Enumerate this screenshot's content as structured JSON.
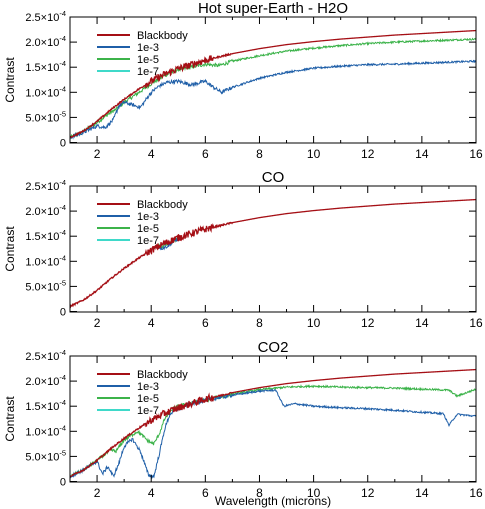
{
  "figure": {
    "xlabel": "Wavelength (microns)"
  },
  "legend_entries": [
    {
      "name": "Blackbody",
      "color": "#a50f15"
    },
    {
      "name": "1e-3",
      "color": "#1f5fa8"
    },
    {
      "name": "1e-5",
      "color": "#3cb34a"
    },
    {
      "name": "1e-7",
      "color": "#3fd9c9"
    }
  ],
  "chart_data": [
    {
      "type": "line",
      "title": "Hot super-Earth - H2O",
      "xlabel": "",
      "ylabel": "Contrast",
      "xlim": [
        1,
        16
      ],
      "ylim": [
        -1e-06,
        0.00025
      ],
      "x_ticks": [
        2,
        4,
        6,
        8,
        10,
        12,
        14,
        16
      ],
      "x_tick_labels": [
        "2",
        "4",
        "6",
        "8",
        "10",
        "12",
        "14",
        "16"
      ],
      "y_ticks": [
        0,
        5e-05,
        0.0001,
        0.00015,
        0.0002,
        0.00025
      ],
      "y_tick_labels": [
        {
          "mant": "0",
          "exp": ""
        },
        {
          "mant": "5.0×10",
          "exp": "-5"
        },
        {
          "mant": "1.0×10",
          "exp": "-4"
        },
        {
          "mant": "1.5×10",
          "exp": "-4"
        },
        {
          "mant": "2.0×10",
          "exp": "-4"
        },
        {
          "mant": "2.5×10",
          "exp": "-4"
        }
      ],
      "legend": "top-left",
      "series": [
        {
          "name": "Blackbody",
          "color": "#a50f15",
          "x": [
            1.0,
            1.5,
            2.0,
            2.5,
            3.0,
            3.5,
            4.0,
            4.5,
            5.0,
            6.0,
            7.0,
            8.0,
            9.0,
            10.0,
            11.0,
            12.0,
            13.0,
            14.0,
            15.0,
            16.0
          ],
          "y": [
            1e-05,
            2.3e-05,
            4.2e-05,
            6.5e-05,
            8.6e-05,
            0.000105,
            0.000122,
            0.000136,
            0.000147,
            0.000164,
            0.000177,
            0.000187,
            0.000195,
            0.000201,
            0.000206,
            0.00021,
            0.000214,
            0.000217,
            0.00022,
            0.000223
          ]
        },
        {
          "name": "1e-3",
          "color": "#1f5fa8",
          "x": [
            1.0,
            1.5,
            2.0,
            2.3,
            2.6,
            2.8,
            3.0,
            3.3,
            3.6,
            4.0,
            4.3,
            4.6,
            5.0,
            5.5,
            6.0,
            6.3,
            6.6,
            7.0,
            8.0,
            9.0,
            10.0,
            11.0,
            12.0,
            13.0,
            14.0,
            15.0,
            16.0
          ],
          "y": [
            1e-05,
            2e-05,
            3.3e-05,
            3e-05,
            4.5e-05,
            7.2e-05,
            8e-05,
            7.5e-05,
            7e-05,
            0.0001,
            0.000113,
            0.00012,
            0.000122,
            0.000115,
            0.000122,
            0.00011,
            0.0001,
            0.00011,
            0.000128,
            0.00014,
            0.000148,
            0.000152,
            0.000155,
            0.000156,
            0.000158,
            0.00016,
            0.000162
          ]
        },
        {
          "name": "1e-5",
          "color": "#3cb34a",
          "x": [
            1.0,
            1.5,
            2.0,
            2.5,
            2.7,
            3.0,
            3.5,
            4.0,
            4.5,
            5.0,
            5.5,
            6.0,
            6.5,
            7.0,
            8.0,
            9.0,
            10.0,
            11.0,
            12.0,
            13.0,
            14.0,
            15.0,
            16.0
          ],
          "y": [
            1e-05,
            2.2e-05,
            4e-05,
            6e-05,
            6.6e-05,
            8e-05,
            9.8e-05,
            0.000117,
            0.000134,
            0.000145,
            0.00015,
            0.000156,
            0.000153,
            0.000162,
            0.000173,
            0.000182,
            0.000188,
            0.000193,
            0.000197,
            0.0002,
            0.000202,
            0.000204,
            0.000206
          ]
        }
      ]
    },
    {
      "type": "line",
      "title": "CO",
      "xlabel": "",
      "ylabel": "Contrast",
      "xlim": [
        1,
        16
      ],
      "ylim": [
        -1e-06,
        0.00025
      ],
      "x_ticks": [
        2,
        4,
        6,
        8,
        10,
        12,
        14,
        16
      ],
      "x_tick_labels": [
        "2",
        "4",
        "6",
        "8",
        "10",
        "12",
        "14",
        "16"
      ],
      "y_ticks": [
        0,
        5e-05,
        0.0001,
        0.00015,
        0.0002,
        0.00025
      ],
      "y_tick_labels": [
        {
          "mant": "0",
          "exp": ""
        },
        {
          "mant": "5.0×10",
          "exp": "-5"
        },
        {
          "mant": "1.0×10",
          "exp": "-4"
        },
        {
          "mant": "1.5×10",
          "exp": "-4"
        },
        {
          "mant": "2.0×10",
          "exp": "-4"
        },
        {
          "mant": "2.5×10",
          "exp": "-4"
        }
      ],
      "legend": "top-left",
      "series": [
        {
          "name": "Blackbody",
          "color": "#a50f15",
          "x": [
            1.0,
            1.5,
            2.0,
            2.5,
            3.0,
            3.5,
            4.0,
            4.5,
            5.0,
            6.0,
            7.0,
            8.0,
            9.0,
            10.0,
            11.0,
            12.0,
            13.0,
            14.0,
            15.0,
            16.0
          ],
          "y": [
            1e-05,
            2.3e-05,
            4.2e-05,
            6.5e-05,
            8.6e-05,
            0.000105,
            0.000122,
            0.000136,
            0.000147,
            0.000164,
            0.000177,
            0.000187,
            0.000195,
            0.000201,
            0.000206,
            0.00021,
            0.000214,
            0.000217,
            0.00022,
            0.000223
          ]
        },
        {
          "name": "1e-3",
          "color": "#1f5fa8",
          "x": [
            4.2,
            4.4,
            4.6,
            4.8,
            5.0
          ],
          "y": [
            0.00013,
            0.000126,
            0.00013,
            0.000138,
            0.000145
          ]
        },
        {
          "name": "1e-5",
          "color": "#3cb34a",
          "x": [
            4.2,
            4.4,
            4.6,
            4.8,
            5.0
          ],
          "y": [
            0.000131,
            0.00013,
            0.000133,
            0.00014,
            0.000146
          ]
        }
      ]
    },
    {
      "type": "line",
      "title": "CO2",
      "xlabel": "Wavelength (microns)",
      "ylabel": "Contrast",
      "xlim": [
        1,
        16
      ],
      "ylim": [
        -1e-06,
        0.00025
      ],
      "x_ticks": [
        2,
        4,
        6,
        8,
        10,
        12,
        14,
        16
      ],
      "x_tick_labels": [
        "2",
        "4",
        "6",
        "8",
        "10",
        "12",
        "14",
        "16"
      ],
      "y_ticks": [
        0,
        5e-05,
        0.0001,
        0.00015,
        0.0002,
        0.00025
      ],
      "y_tick_labels": [
        {
          "mant": "0",
          "exp": ""
        },
        {
          "mant": "5.0×10",
          "exp": "-5"
        },
        {
          "mant": "1.0×10",
          "exp": "-4"
        },
        {
          "mant": "1.5×10",
          "exp": "-4"
        },
        {
          "mant": "2.0×10",
          "exp": "-4"
        },
        {
          "mant": "2.5×10",
          "exp": "-4"
        }
      ],
      "legend": "top-left",
      "series": [
        {
          "name": "Blackbody",
          "color": "#a50f15",
          "x": [
            1.0,
            1.5,
            2.0,
            2.5,
            3.0,
            3.5,
            4.0,
            4.5,
            5.0,
            6.0,
            7.0,
            8.0,
            9.0,
            10.0,
            11.0,
            12.0,
            13.0,
            14.0,
            15.0,
            16.0
          ],
          "y": [
            1e-05,
            2.3e-05,
            4.2e-05,
            6.5e-05,
            8.6e-05,
            0.000105,
            0.000122,
            0.000136,
            0.000147,
            0.000164,
            0.000177,
            0.000187,
            0.000195,
            0.000201,
            0.000206,
            0.00021,
            0.000214,
            0.000217,
            0.00022,
            0.000223
          ]
        },
        {
          "name": "1e-3",
          "color": "#1f5fa8",
          "x": [
            1.0,
            1.5,
            2.0,
            2.2,
            2.4,
            2.6,
            2.8,
            3.0,
            3.3,
            3.6,
            3.9,
            4.1,
            4.3,
            4.5,
            4.7,
            5.0,
            5.5,
            6.0,
            7.0,
            8.0,
            8.6,
            8.9,
            9.3,
            10.0,
            11.0,
            12.0,
            13.0,
            14.0,
            14.8,
            15.0,
            15.3,
            16.0
          ],
          "y": [
            1e-05,
            2.3e-05,
            4e-05,
            1.5e-05,
            3e-05,
            1e-05,
            3.5e-05,
            7e-05,
            8.5e-05,
            6e-05,
            1.3e-05,
            1e-05,
            5.5e-05,
            0.000105,
            0.000135,
            0.000145,
            0.000155,
            0.000162,
            0.000172,
            0.00018,
            0.000182,
            0.00015,
            0.000155,
            0.00015,
            0.000147,
            0.000145,
            0.000142,
            0.000138,
            0.000135,
            0.000112,
            0.000134,
            0.00013
          ]
        },
        {
          "name": "1e-5",
          "color": "#3cb34a",
          "x": [
            1.0,
            1.5,
            2.0,
            2.5,
            2.7,
            3.0,
            3.5,
            3.9,
            4.1,
            4.3,
            4.5,
            4.8,
            5.0,
            6.0,
            7.0,
            8.0,
            9.0,
            10.0,
            11.0,
            12.0,
            13.0,
            14.0,
            15.0,
            15.3,
            16.0
          ],
          "y": [
            1e-05,
            2.3e-05,
            4.2e-05,
            6.3e-05,
            6e-05,
            8.3e-05,
            0.0001,
            8e-05,
            7.5e-05,
            9.5e-05,
            0.000125,
            0.000145,
            0.00015,
            0.000162,
            0.000174,
            0.000183,
            0.000188,
            0.00019,
            0.000188,
            0.000187,
            0.000186,
            0.000184,
            0.000182,
            0.00017,
            0.000184
          ]
        }
      ]
    }
  ]
}
